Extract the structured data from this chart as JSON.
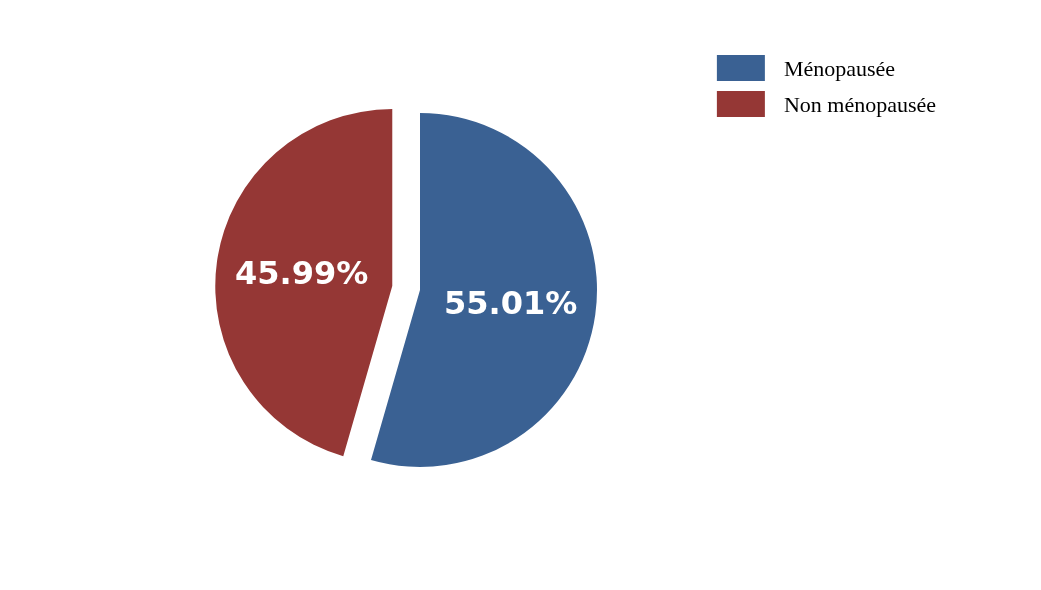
{
  "chart_data": {
    "type": "pie",
    "categories": [
      "Ménopausée",
      "Non ménopausée"
    ],
    "values": [
      55.01,
      45.99
    ],
    "colors": [
      "#3a6193",
      "#953735"
    ],
    "value_labels": [
      "55.01%",
      "45.99%"
    ],
    "legend": "top right"
  }
}
